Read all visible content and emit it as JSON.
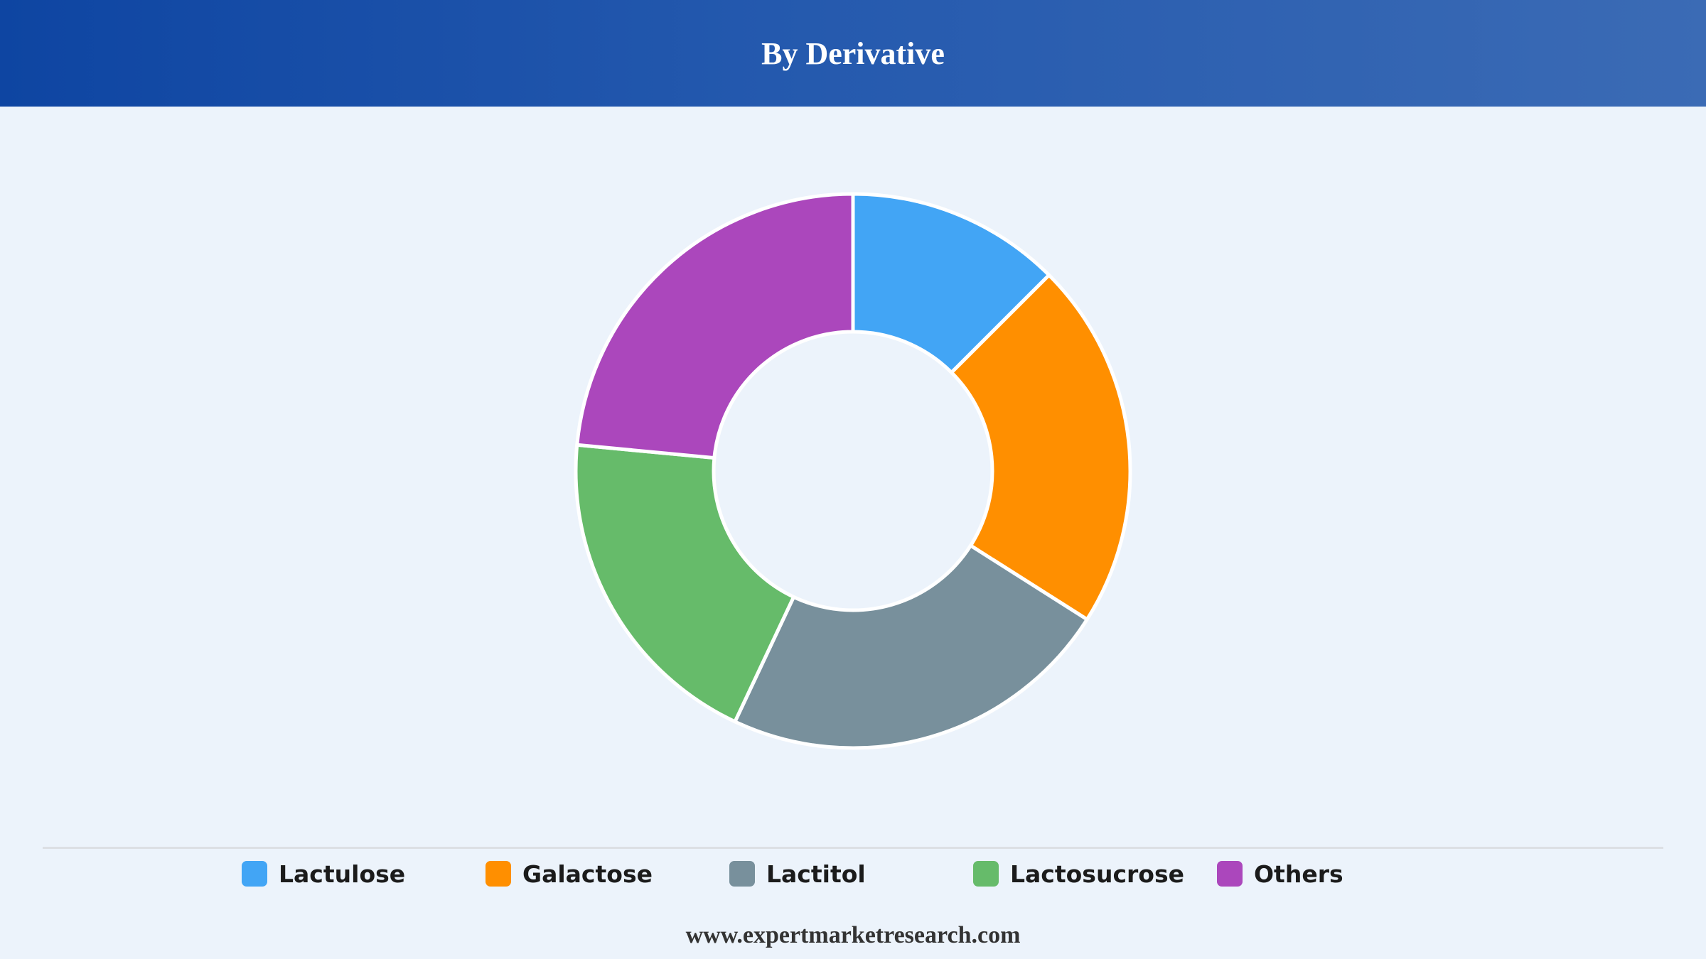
{
  "header": {
    "title": "By Derivative"
  },
  "chart_data": {
    "type": "pie",
    "variant": "donut",
    "title": "By Derivative",
    "categories": [
      "Lactulose",
      "Galactose",
      "Lactitol",
      "Lactosucrose",
      "Others"
    ],
    "values": [
      12.5,
      21.5,
      23,
      19.5,
      23.5
    ],
    "unit": "%",
    "colors": [
      "#42a5f5",
      "#ff8f00",
      "#78909c",
      "#66bb6a",
      "#ab47bc"
    ],
    "legend": "bottom",
    "grid": false
  },
  "footer": {
    "source": "www.expertmarketresearch.com"
  }
}
